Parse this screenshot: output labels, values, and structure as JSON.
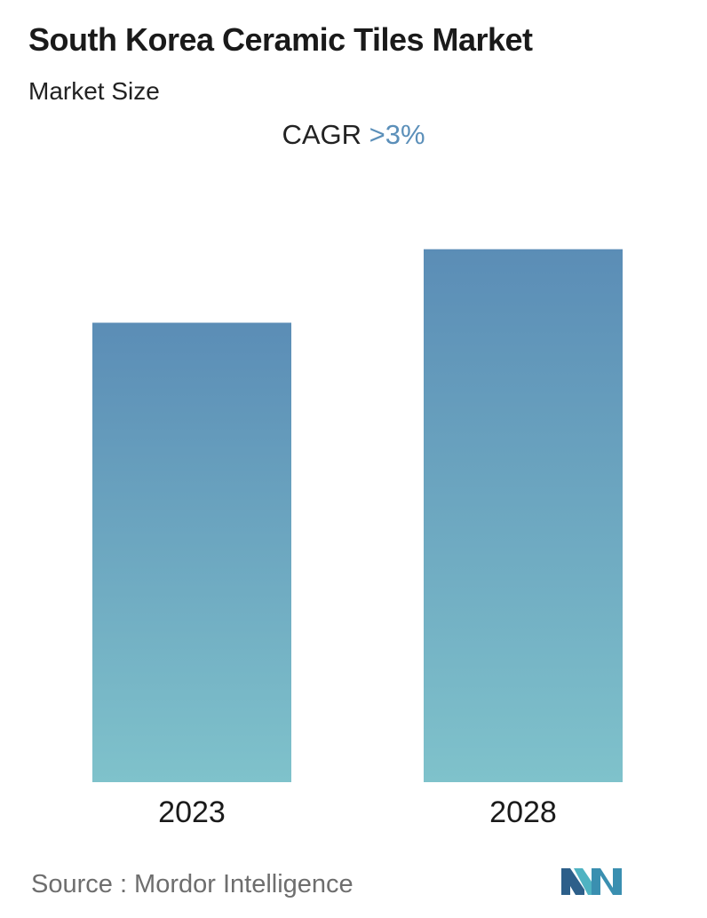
{
  "header": {
    "title": "South Korea Ceramic Tiles Market",
    "subtitle": "Market Size"
  },
  "cagr": {
    "label": "CAGR",
    "value": ">3%"
  },
  "chart_data": {
    "type": "bar",
    "categories": [
      "2023",
      "2028"
    ],
    "values": [
      1.0,
      1.16
    ],
    "title": "",
    "xlabel": "",
    "ylabel": "",
    "ylim": [
      0,
      1.2
    ],
    "grid": false,
    "legend": "none",
    "colors": {
      "bar_top": "#5b8db6",
      "bar_bottom": "#7fc2cb"
    }
  },
  "footer": {
    "source": "Source :  Mordor Intelligence"
  },
  "logo": {
    "icon": "mordor-intelligence-logo-icon",
    "colors": [
      "#2d5f8a",
      "#4fb3c2"
    ]
  }
}
